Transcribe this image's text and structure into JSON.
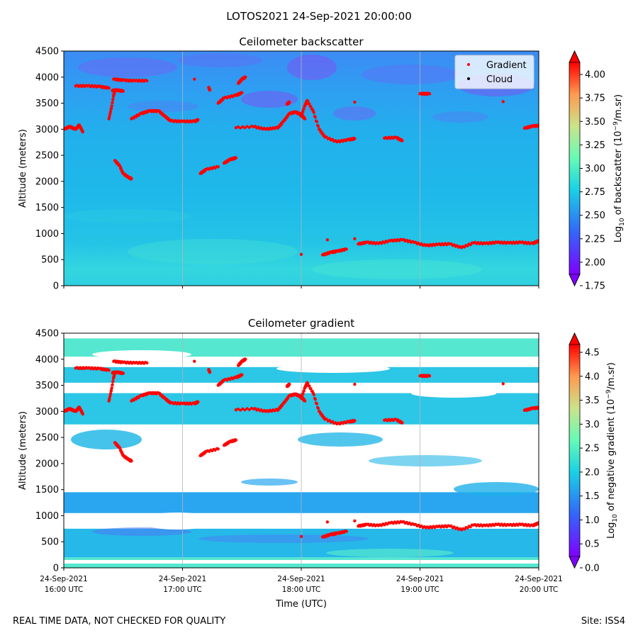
{
  "suptitle": "LOTOS2021 24-Sep-2021 20:00:00",
  "footer": {
    "disclaimer": "REAL TIME DATA, NOT CHECKED FOR QUALITY",
    "site": "Site: ISS4"
  },
  "chart_data": [
    {
      "type": "heatmap",
      "title": "Ceilometer backscatter",
      "xlabel": "",
      "ylabel": "Altitude (meters)",
      "ylim": [
        0,
        4500
      ],
      "yticks": [
        "0",
        "500",
        "1000",
        "1500",
        "2000",
        "2500",
        "3000",
        "3500",
        "4000",
        "4500"
      ],
      "xlim_hours_utc": [
        16,
        20
      ],
      "colorbar": {
        "label": "Log10 of backscatter (10^-9/m.sr)",
        "range": [
          1.75,
          4.25
        ],
        "ticks": [
          "1.75",
          "2.00",
          "2.25",
          "2.50",
          "2.75",
          "3.00",
          "3.25",
          "3.50",
          "3.75",
          "4.00"
        ],
        "cmap": "rainbow"
      },
      "legend": {
        "position": "top-right",
        "entries": [
          {
            "label": "Gradient",
            "color": "#ff0000",
            "marker": "dot"
          },
          {
            "label": "Cloud",
            "color": "#000000",
            "marker": "dot"
          }
        ]
      },
      "gradient_series": [
        {
          "name": "seg1",
          "x": [
            16.0,
            16.05,
            16.1,
            16.13,
            16.16
          ],
          "y": [
            3000,
            3050,
            3000,
            3080,
            2950
          ]
        },
        {
          "name": "seg2",
          "x": [
            16.1,
            16.2,
            16.3,
            16.38
          ],
          "y": [
            3830,
            3830,
            3820,
            3790
          ]
        },
        {
          "name": "seg3",
          "x": [
            16.38,
            16.4,
            16.42,
            16.43
          ],
          "y": [
            3200,
            3400,
            3650,
            3750
          ]
        },
        {
          "name": "seg4",
          "x": [
            16.41,
            16.45,
            16.5
          ],
          "y": [
            3740,
            3750,
            3730
          ]
        },
        {
          "name": "seg5",
          "x": [
            16.42,
            16.5,
            16.6,
            16.7
          ],
          "y": [
            3960,
            3940,
            3930,
            3930
          ]
        },
        {
          "name": "seg6",
          "x": [
            16.43,
            16.47,
            16.5,
            16.55,
            16.57
          ],
          "y": [
            2400,
            2300,
            2150,
            2070,
            2050
          ]
        },
        {
          "name": "seg7",
          "x": [
            16.57,
            16.65,
            16.72,
            16.8,
            16.85,
            16.9,
            17.0,
            17.1,
            17.13
          ],
          "y": [
            3200,
            3300,
            3350,
            3350,
            3250,
            3160,
            3150,
            3150,
            3180
          ]
        },
        {
          "name": "seg8",
          "x": [
            17.1
          ],
          "y": [
            3960
          ]
        },
        {
          "name": "seg9",
          "x": [
            17.15,
            17.2,
            17.3
          ],
          "y": [
            2150,
            2230,
            2280
          ]
        },
        {
          "name": "seg10",
          "x": [
            17.35,
            17.4,
            17.45
          ],
          "y": [
            2350,
            2420,
            2450
          ]
        },
        {
          "name": "seg11",
          "x": [
            17.22,
            17.23
          ],
          "y": [
            3800,
            3750
          ]
        },
        {
          "name": "seg12",
          "x": [
            17.3,
            17.35,
            17.45,
            17.5
          ],
          "y": [
            3500,
            3600,
            3650,
            3700
          ]
        },
        {
          "name": "seg13",
          "x": [
            17.47,
            17.5,
            17.53
          ],
          "y": [
            3880,
            3960,
            4000
          ]
        },
        {
          "name": "seg14",
          "x": [
            17.45,
            17.6,
            17.7,
            17.8
          ],
          "y": [
            3030,
            3050,
            3000,
            3030
          ]
        },
        {
          "name": "seg15",
          "x": [
            17.8,
            17.85,
            17.9,
            17.95,
            18.0,
            18.03
          ],
          "y": [
            3020,
            3150,
            3300,
            3330,
            3280,
            3200
          ]
        },
        {
          "name": "seg16",
          "x": [
            17.88,
            17.9
          ],
          "y": [
            3480,
            3520
          ]
        },
        {
          "name": "seg17",
          "x": [
            18.0,
            18.03,
            18.05,
            18.1,
            18.15,
            18.2
          ],
          "y": [
            3250,
            3450,
            3550,
            3350,
            3000,
            2850
          ]
        },
        {
          "name": "seg18",
          "x": [
            18.2,
            18.3,
            18.4,
            18.45
          ],
          "y": [
            2850,
            2760,
            2800,
            2820
          ]
        },
        {
          "name": "seg19",
          "x": [
            18.45
          ],
          "y": [
            3520
          ]
        },
        {
          "name": "seg20",
          "x": [
            18.7,
            18.8,
            18.85
          ],
          "y": [
            2830,
            2840,
            2780
          ]
        },
        {
          "name": "seg21",
          "x": [
            19.0,
            19.08
          ],
          "y": [
            3680,
            3680
          ]
        },
        {
          "name": "seg22",
          "x": [
            19.7
          ],
          "y": [
            3530
          ]
        },
        {
          "name": "seg23",
          "x": [
            19.88,
            19.95,
            20.0
          ],
          "y": [
            3020,
            3060,
            3070
          ]
        },
        {
          "name": "low1",
          "x": [
            18.0
          ],
          "y": [
            600
          ]
        },
        {
          "name": "low2",
          "x": [
            18.18,
            18.25,
            18.3,
            18.38
          ],
          "y": [
            590,
            640,
            660,
            700
          ]
        },
        {
          "name": "low3",
          "x": [
            18.22
          ],
          "y": [
            880
          ]
        },
        {
          "name": "low4",
          "x": [
            18.45
          ],
          "y": [
            900
          ]
        },
        {
          "name": "low5",
          "x": [
            18.48,
            18.55,
            18.65,
            18.75,
            18.85,
            18.95,
            19.05,
            19.15,
            19.25,
            19.35,
            19.45,
            19.55,
            19.65,
            19.75,
            19.85,
            19.95,
            20.0
          ],
          "y": [
            800,
            830,
            810,
            860,
            880,
            830,
            770,
            790,
            800,
            730,
            820,
            810,
            830,
            820,
            830,
            810,
            860
          ]
        }
      ]
    },
    {
      "type": "heatmap",
      "title": "Ceilometer gradient",
      "xlabel": "Time (UTC)",
      "ylabel": "Altitude (meters)",
      "ylim": [
        0,
        4500
      ],
      "yticks": [
        "0",
        "500",
        "1000",
        "1500",
        "2000",
        "2500",
        "3000",
        "3500",
        "4000",
        "4500"
      ],
      "xlim_hours_utc": [
        16,
        20
      ],
      "xtick_dates": [
        "24-Sep-2021",
        "24-Sep-2021",
        "24-Sep-2021",
        "24-Sep-2021",
        "24-Sep-2021"
      ],
      "xtick_times": [
        "16:00 UTC",
        "17:00 UTC",
        "18:00 UTC",
        "19:00 UTC",
        "20:00 UTC"
      ],
      "colorbar": {
        "label": "Log10 of negative gradient (10^-9/m.sr)",
        "range": [
          0.0,
          4.9
        ],
        "ticks": [
          "0.0",
          "0.5",
          "1.0",
          "1.5",
          "2.0",
          "2.5",
          "3.0",
          "3.5",
          "4.0",
          "4.5"
        ],
        "cmap": "rainbow"
      },
      "bands": [
        {
          "name": "surface",
          "y0": 0,
          "y1": 200,
          "value": 1.7
        },
        {
          "name": "low-layer",
          "y0": 200,
          "y1": 750,
          "value": 1.3
        },
        {
          "name": "mid-layer",
          "y0": 1050,
          "y1": 1450,
          "value": 1.1
        },
        {
          "name": "gradient-3000",
          "y0": 2750,
          "y1": 3350,
          "value": 1.5
        },
        {
          "name": "gradient-3700",
          "y0": 3550,
          "y1": 3850,
          "value": 1.4
        },
        {
          "name": "gradient-4200",
          "y0": 4050,
          "y1": 4400,
          "value": 1.6
        }
      ]
    }
  ]
}
